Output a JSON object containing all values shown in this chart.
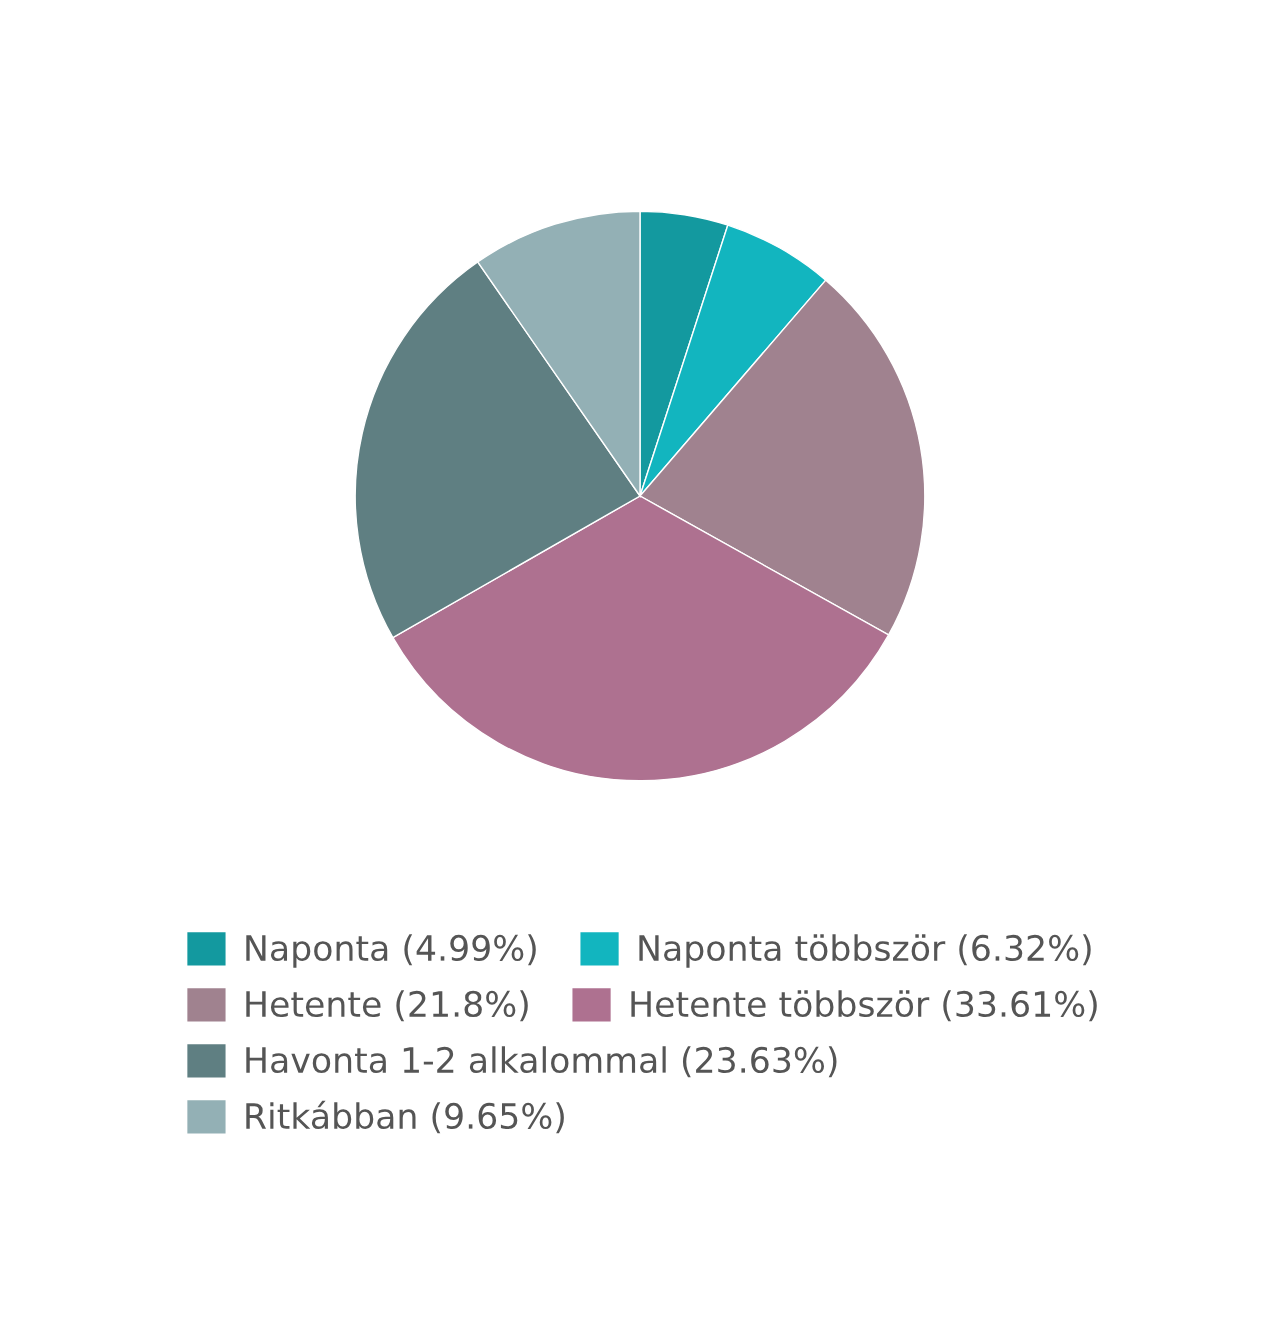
{
  "chart_data": {
    "type": "pie",
    "categories": [
      "Naponta (4.99%)",
      "Naponta többször (6.32%)",
      "Hetente (21.8%)",
      "Hetente többször (33.61%)",
      "Havonta 1-2 alkalommal (23.63%)",
      "Ritkábban (9.65%)"
    ],
    "values": [
      4.99,
      6.32,
      21.8,
      33.61,
      23.63,
      9.65
    ],
    "colors": [
      "#13999f",
      "#12b5bf",
      "#a0828f",
      "#ae7190",
      "#5f7f82",
      "#93b0b5"
    ],
    "legend": "bottom"
  }
}
